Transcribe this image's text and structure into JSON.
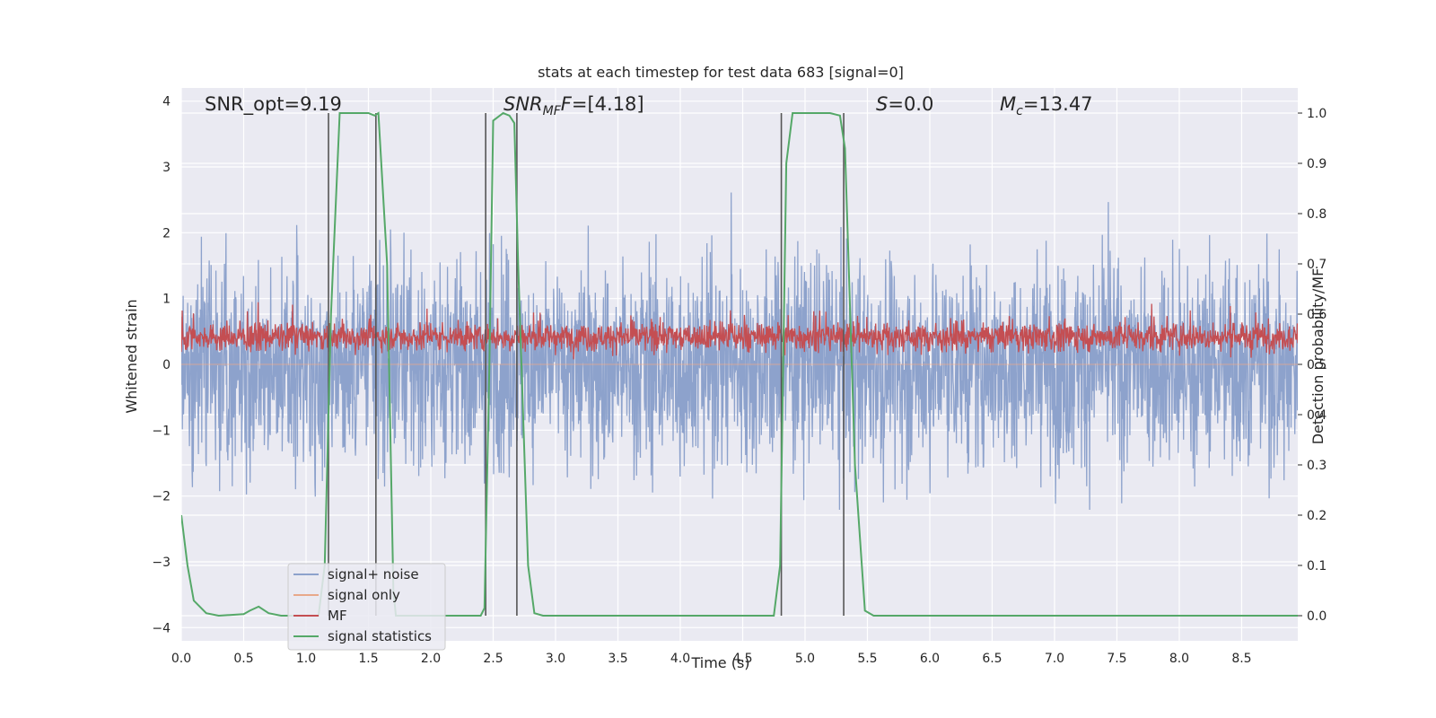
{
  "chart_data": {
    "type": "line",
    "title": "stats at each timestep for test data 683 [signal=0]",
    "xlabel": "Time (s)",
    "ylabel_left": "Whitened strain",
    "ylabel_right": "Detection probability/MF",
    "xlim": [
      0,
      8.95
    ],
    "ylim_left": [
      -4.2,
      4.2
    ],
    "ylim_right": [
      -0.05,
      1.05
    ],
    "x_ticks": [
      "0.0",
      "0.5",
      "1.0",
      "1.5",
      "2.0",
      "2.5",
      "3.0",
      "3.5",
      "4.0",
      "4.5",
      "5.0",
      "5.5",
      "6.0",
      "6.5",
      "7.0",
      "7.5",
      "8.0",
      "8.5"
    ],
    "y_left_ticks": [
      "4",
      "3",
      "2",
      "1",
      "0",
      "−1",
      "−2",
      "−3",
      "−4"
    ],
    "y_right_ticks": [
      "1.0",
      "0.9",
      "0.8",
      "0.7",
      "0.6",
      "0.5",
      "0.4",
      "0.3",
      "0.2",
      "0.1",
      "0.0"
    ],
    "grid": true,
    "annotations": {
      "snr_opt": "SNR_opt=9.19",
      "snr_mf_main": "SNR",
      "snr_mf_sub": "MF",
      "snr_mf_rest": "=[4.18]",
      "s_main": "S",
      "s_rest": "=0.0",
      "mc_main": "M",
      "mc_sub": "c",
      "mc_rest": "=13.47"
    },
    "legend": {
      "placement": "lower-left",
      "entries": [
        "signal+ noise",
        "signal only",
        "MF",
        "signal statistics"
      ]
    },
    "colors": {
      "signal_noise": "#8da2cc",
      "signal_only": "#e8a88a",
      "mf": "#c44e52",
      "signal_statistics": "#55a868",
      "background": "#eaeaf2",
      "vline": "#555555"
    },
    "series": [
      {
        "name": "signal+ noise",
        "axis": "left",
        "description_values": "noise, approx. range -3.6 to 3.8"
      },
      {
        "name": "signal only",
        "axis": "left",
        "values_constant": 0
      },
      {
        "name": "MF",
        "axis": "right",
        "approx_range": [
          0.51,
          0.63
        ]
      },
      {
        "name": "signal statistics",
        "axis": "right",
        "x": [
          0.0,
          0.05,
          0.1,
          0.2,
          0.3,
          0.5,
          0.55,
          0.62,
          0.7,
          0.8,
          1.1,
          1.15,
          1.2,
          1.27,
          1.35,
          1.5,
          1.55,
          1.58,
          1.65,
          1.7,
          1.72,
          2.0,
          2.4,
          2.43,
          2.47,
          2.5,
          2.58,
          2.63,
          2.67,
          2.7,
          2.78,
          2.83,
          2.9,
          3.5,
          4.0,
          4.5,
          4.75,
          4.8,
          4.85,
          4.9,
          5.0,
          5.2,
          5.28,
          5.32,
          5.4,
          5.48,
          5.55,
          6.0,
          7.0,
          8.0,
          8.95
        ],
        "y": [
          0.2,
          0.1,
          0.03,
          0.005,
          0.0,
          0.003,
          0.01,
          0.018,
          0.005,
          0.0,
          0.0,
          0.1,
          0.6,
          1.0,
          1.0,
          1.0,
          0.995,
          1.0,
          0.7,
          0.05,
          0.0,
          0.0,
          0.0,
          0.015,
          0.5,
          0.985,
          1.0,
          0.995,
          0.98,
          0.7,
          0.1,
          0.005,
          0.0,
          0.0,
          0.0,
          0.0,
          0.0,
          0.1,
          0.9,
          1.0,
          1.0,
          1.0,
          0.995,
          0.93,
          0.3,
          0.01,
          0.0,
          0.0,
          0.0,
          0.0,
          0.0
        ]
      }
    ],
    "vlines": [
      1.18,
      1.56,
      2.44,
      2.69,
      4.81,
      5.31
    ]
  }
}
